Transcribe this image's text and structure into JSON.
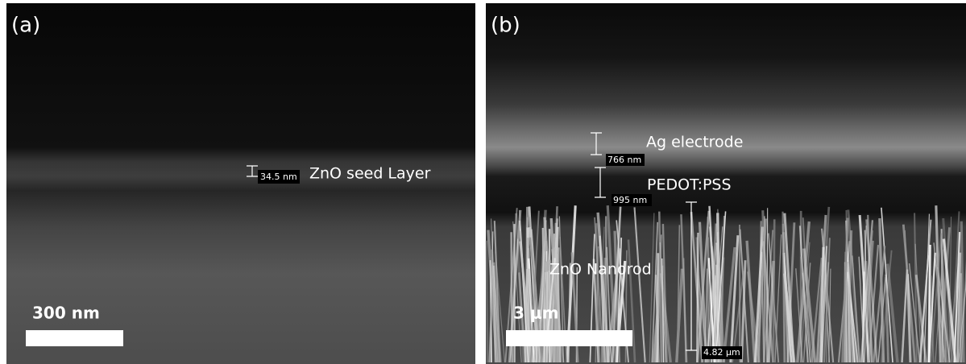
{
  "panels": [
    {
      "label": "(a)",
      "scale_bar": "300 nm",
      "measurement": "34.5 nm",
      "annotation": "ZnO seed Layer"
    },
    {
      "label": "(b)",
      "scale_bar": "3 μm",
      "measurements": [
        "766 nm",
        "995 nm",
        "4.82 μm"
      ],
      "annotations": [
        "Ag electrode",
        "PEDOT:PSS",
        "ZnO Nanorod"
      ]
    }
  ]
}
